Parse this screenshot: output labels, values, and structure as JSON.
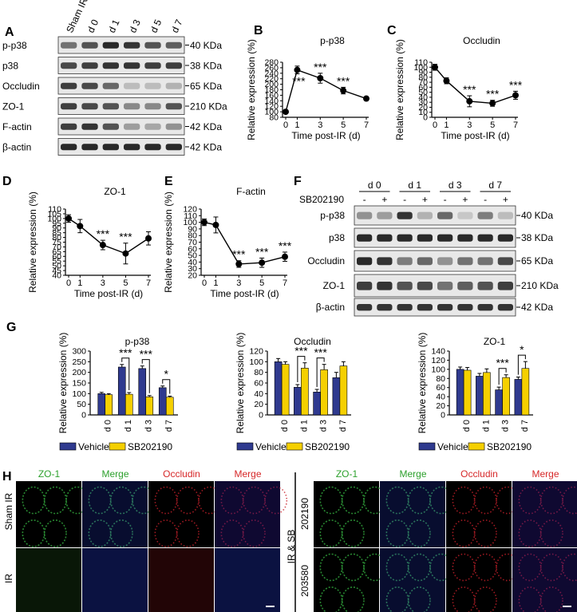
{
  "panels": {
    "A": {
      "letter": "A",
      "lanes": [
        "Sham IR",
        "d 0",
        "d 1",
        "d 3",
        "d 5",
        "d 7"
      ],
      "rows": [
        {
          "label": "p-p38",
          "size": "40 KDa"
        },
        {
          "label": "p38",
          "size": "38 KDa"
        },
        {
          "label": "Occludin",
          "size": "65 KDa"
        },
        {
          "label": "ZO-1",
          "size": "210 KDa"
        },
        {
          "label": "F-actin",
          "size": "42 KDa"
        },
        {
          "label": "β-actin",
          "size": "42 KDa"
        }
      ]
    },
    "F": {
      "letter": "F",
      "groups": [
        "d 0",
        "d 1",
        "d 3",
        "d 7"
      ],
      "treatment_label": "SB202190",
      "signs": [
        "-",
        "+",
        "-",
        "+",
        "-",
        "+",
        "-",
        "+"
      ],
      "rows": [
        {
          "label": "p-p38",
          "size": "40 KDa"
        },
        {
          "label": "p38",
          "size": "38 KDa"
        },
        {
          "label": "Occludin",
          "size": "65 KDa"
        },
        {
          "label": "ZO-1",
          "size": "210 KDa"
        },
        {
          "label": "β-actin",
          "size": "42 KDa"
        }
      ]
    },
    "H": {
      "letter": "H",
      "left_columns": [
        {
          "text": "ZO-1",
          "color": "#2ca02c"
        },
        {
          "text": "Merge",
          "color": "#2ca02c"
        },
        {
          "text": "Occludin",
          "color": "#d62728"
        },
        {
          "text": "Merge",
          "color": "#d62728"
        }
      ],
      "right_columns": [
        {
          "text": "ZO-1",
          "color": "#2ca02c"
        },
        {
          "text": "Merge",
          "color": "#2ca02c"
        },
        {
          "text": "Occludin",
          "color": "#d62728"
        },
        {
          "text": "Merge",
          "color": "#d62728"
        }
      ],
      "left_rows": [
        "Sham IR",
        "IR"
      ],
      "right_group": "IR & SB",
      "right_rows": [
        "202190",
        "203580"
      ]
    }
  },
  "chart_data": [
    {
      "letter": "B",
      "type": "line",
      "title": "p-p38",
      "xlabel": "Time post-IR (d)",
      "ylabel": "Relative expression (%)",
      "x": [
        0,
        1,
        3,
        5,
        7
      ],
      "y": [
        100,
        252,
        222,
        177,
        148
      ],
      "err": [
        5,
        14,
        18,
        12,
        7
      ],
      "ylim": [
        80,
        280
      ],
      "yticks": [
        80,
        100,
        120,
        140,
        160,
        180,
        200,
        220,
        240,
        260,
        280
      ],
      "xticks": [
        0,
        1,
        3,
        5,
        7
      ],
      "sig": [
        "",
        "***",
        "***",
        "***",
        ""
      ],
      "sig_side": [
        "",
        "below",
        "above",
        "above",
        ""
      ]
    },
    {
      "letter": "C",
      "type": "line",
      "title": "Occludin",
      "xlabel": "Time post-IR (d)",
      "ylabel": "Relative expression (%)",
      "x": [
        0,
        1,
        3,
        5,
        7
      ],
      "y": [
        100,
        73,
        32,
        28,
        44
      ],
      "err": [
        6,
        6,
        11,
        6,
        8
      ],
      "ylim": [
        0,
        110
      ],
      "yticks": [
        0,
        10,
        20,
        30,
        40,
        50,
        60,
        70,
        80,
        90,
        100,
        110
      ],
      "xticks": [
        0,
        1,
        3,
        5,
        7
      ],
      "sig": [
        "",
        "",
        "***",
        "***",
        "***"
      ],
      "sig_side": [
        "",
        "",
        "above",
        "above",
        "above"
      ]
    },
    {
      "letter": "D",
      "type": "line",
      "title": "ZO-1",
      "xlabel": "Time post-IR (d)",
      "ylabel": "Relative expression (%)",
      "x": [
        0,
        1,
        3,
        5,
        7
      ],
      "y": [
        100,
        92,
        72,
        63,
        79
      ],
      "err": [
        4,
        7,
        5,
        11,
        7
      ],
      "ylim": [
        40,
        110
      ],
      "yticks": [
        40,
        45,
        50,
        55,
        60,
        65,
        70,
        75,
        80,
        85,
        90,
        95,
        100,
        105,
        110
      ],
      "xticks": [
        0,
        1,
        3,
        5,
        7
      ],
      "sig": [
        "",
        "",
        "***",
        "***",
        ""
      ],
      "sig_side": [
        "",
        "",
        "above",
        "above",
        ""
      ]
    },
    {
      "letter": "E",
      "type": "line",
      "title": "F-actin",
      "xlabel": "Time post-IR (d)",
      "ylabel": "Relative expression (%)",
      "x": [
        0,
        1,
        3,
        5,
        7
      ],
      "y": [
        100,
        96,
        37,
        39,
        48
      ],
      "err": [
        5,
        12,
        5,
        7,
        7
      ],
      "ylim": [
        20,
        120
      ],
      "yticks": [
        20,
        30,
        40,
        50,
        60,
        70,
        80,
        90,
        100,
        110,
        120
      ],
      "xticks": [
        0,
        1,
        3,
        5,
        7
      ],
      "sig": [
        "",
        "",
        "***",
        "***",
        "***"
      ],
      "sig_side": [
        "",
        "",
        "above",
        "above",
        "above"
      ]
    },
    {
      "letter": "G",
      "type": "bar",
      "title": "p-p38",
      "ylabel": "Relative expression (%)",
      "categories": [
        "d 0",
        "d 1",
        "d 3",
        "d 7"
      ],
      "series": [
        {
          "name": "Vehicle",
          "color": "#2f3a8f",
          "values": [
            100,
            225,
            218,
            128
          ],
          "err": [
            6,
            12,
            12,
            8
          ]
        },
        {
          "name": "SB202190",
          "color": "#f5d000",
          "values": [
            95,
            97,
            85,
            83
          ],
          "err": [
            5,
            8,
            6,
            5
          ]
        }
      ],
      "ylim": [
        0,
        300
      ],
      "yticks": [
        0,
        50,
        100,
        150,
        200,
        250,
        300
      ],
      "brackets": [
        {
          "cat": 1,
          "label": "***"
        },
        {
          "cat": 2,
          "label": "***"
        },
        {
          "cat": 3,
          "label": "*"
        }
      ]
    },
    {
      "type": "bar",
      "title": "Occludin",
      "ylabel": "Relative expression (%)",
      "categories": [
        "d 0",
        "d 1",
        "d 3",
        "d 7"
      ],
      "series": [
        {
          "name": "Vehicle",
          "color": "#2f3a8f",
          "values": [
            100,
            52,
            43,
            70
          ],
          "err": [
            6,
            5,
            5,
            10
          ]
        },
        {
          "name": "SB202190",
          "color": "#f5d000",
          "values": [
            95,
            88,
            85,
            92
          ],
          "err": [
            5,
            10,
            10,
            8
          ]
        }
      ],
      "ylim": [
        0,
        120
      ],
      "yticks": [
        0,
        20,
        40,
        60,
        80,
        100,
        120
      ],
      "brackets": [
        {
          "cat": 1,
          "label": "***"
        },
        {
          "cat": 2,
          "label": "***"
        }
      ]
    },
    {
      "type": "bar",
      "title": "ZO-1",
      "ylabel": "Relative expression (%)",
      "categories": [
        "d 0",
        "d 1",
        "d 3",
        "d 7"
      ],
      "series": [
        {
          "name": "Vehicle",
          "color": "#2f3a8f",
          "values": [
            100,
            85,
            55,
            78
          ],
          "err": [
            5,
            6,
            6,
            5
          ]
        },
        {
          "name": "SB202190",
          "color": "#f5d000",
          "values": [
            98,
            93,
            82,
            102
          ],
          "err": [
            6,
            8,
            6,
            15
          ]
        }
      ],
      "ylim": [
        0,
        140
      ],
      "yticks": [
        0,
        20,
        40,
        60,
        80,
        100,
        120,
        140
      ],
      "brackets": [
        {
          "cat": 2,
          "label": "***"
        },
        {
          "cat": 3,
          "label": "*"
        }
      ]
    }
  ]
}
